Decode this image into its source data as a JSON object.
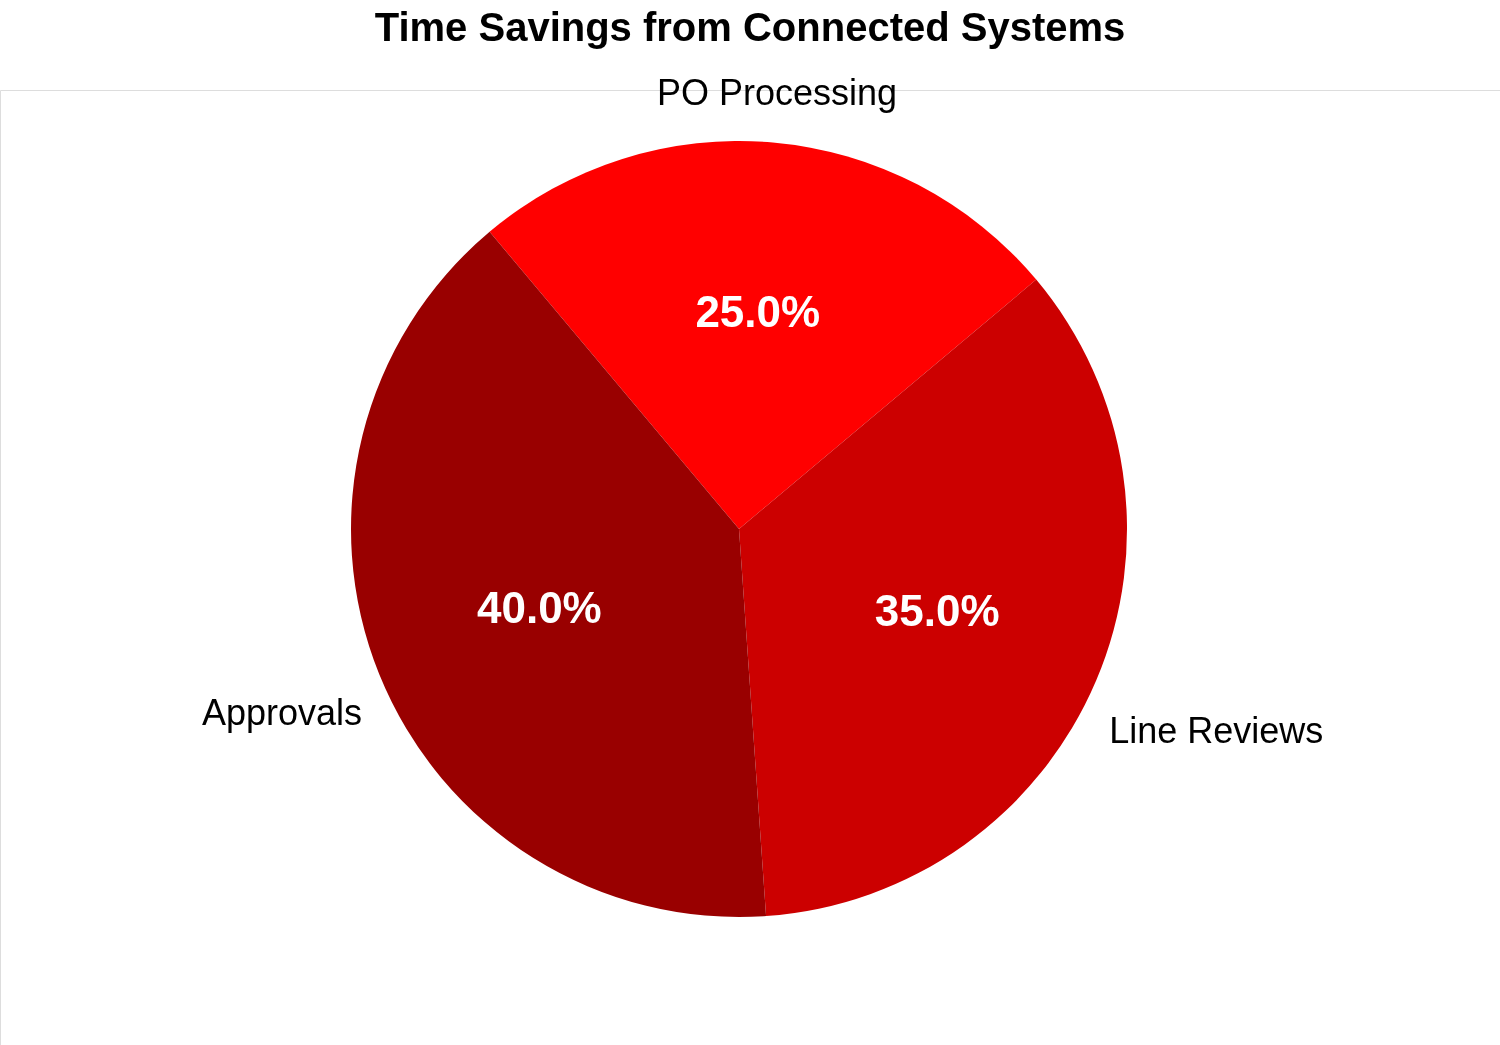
{
  "chart_data": {
    "type": "pie",
    "title": "Time Savings from Connected Systems",
    "categories": [
      "PO Processing",
      "Line Reviews",
      "Approvals"
    ],
    "values": [
      25,
      35,
      40
    ],
    "colors": [
      "#ff0000",
      "#cc0000",
      "#990000"
    ],
    "value_labels": [
      "25.0%",
      "35.0%",
      "40.0%"
    ]
  }
}
